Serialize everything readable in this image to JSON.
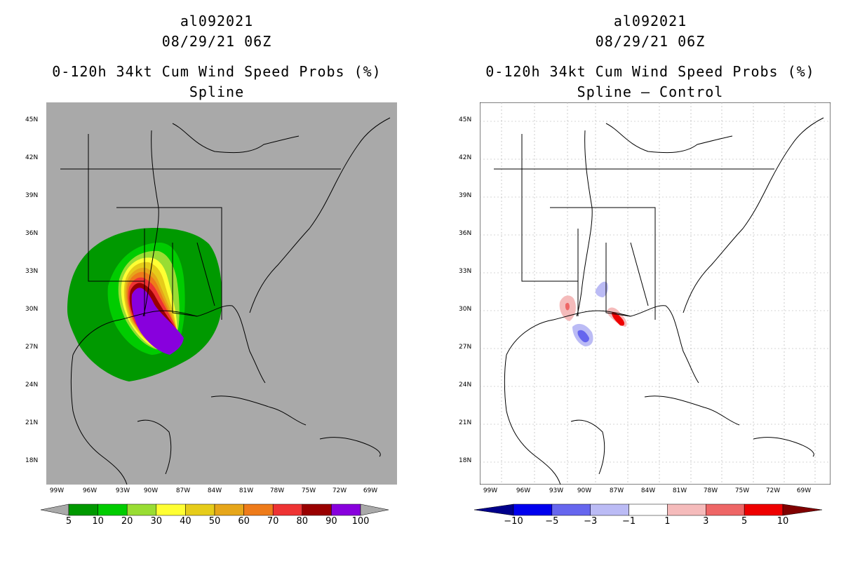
{
  "left": {
    "title_line1": "al092021",
    "title_line2": "08/29/21 06Z",
    "title_line3": "0-120h 34kt Cum Wind Speed Probs (%)",
    "title_line4": "Spline",
    "background_color": "#a9a9a9",
    "colorbar": {
      "colors": [
        "#009900",
        "#00cc00",
        "#99dd33",
        "#ffff33",
        "#e6cc1a",
        "#e6a61a",
        "#ee7b1a",
        "#ee3333",
        "#990000",
        "#8800dd"
      ],
      "under_color": "#a9a9a9",
      "over_color": "#a9a9a9",
      "labels": [
        "5",
        "10",
        "20",
        "30",
        "40",
        "50",
        "60",
        "70",
        "80",
        "90",
        "100"
      ]
    }
  },
  "right": {
    "title_line1": "al092021",
    "title_line2": "08/29/21 06Z",
    "title_line3": "0-120h 34kt Cum Wind Speed Probs (%)",
    "title_line4": "Spline – Control",
    "background_color": "#ffffff",
    "colorbar": {
      "colors": [
        "#0000ee",
        "#6666ee",
        "#bbbbf5",
        "#ffffff",
        "#f5bbbb",
        "#ee6666",
        "#ee0000"
      ],
      "under_color": "#00008b",
      "over_color": "#800000",
      "labels": [
        "−10",
        "−5",
        "−3",
        "−1",
        "1",
        "3",
        "5",
        "10"
      ]
    }
  },
  "lat_labels": [
    "45N",
    "42N",
    "39N",
    "36N",
    "33N",
    "30N",
    "27N",
    "24N",
    "21N",
    "18N"
  ],
  "lon_labels": [
    "99W",
    "96W",
    "93W",
    "90W",
    "87W",
    "84W",
    "81W",
    "78W",
    "75W",
    "72W",
    "69W"
  ]
}
